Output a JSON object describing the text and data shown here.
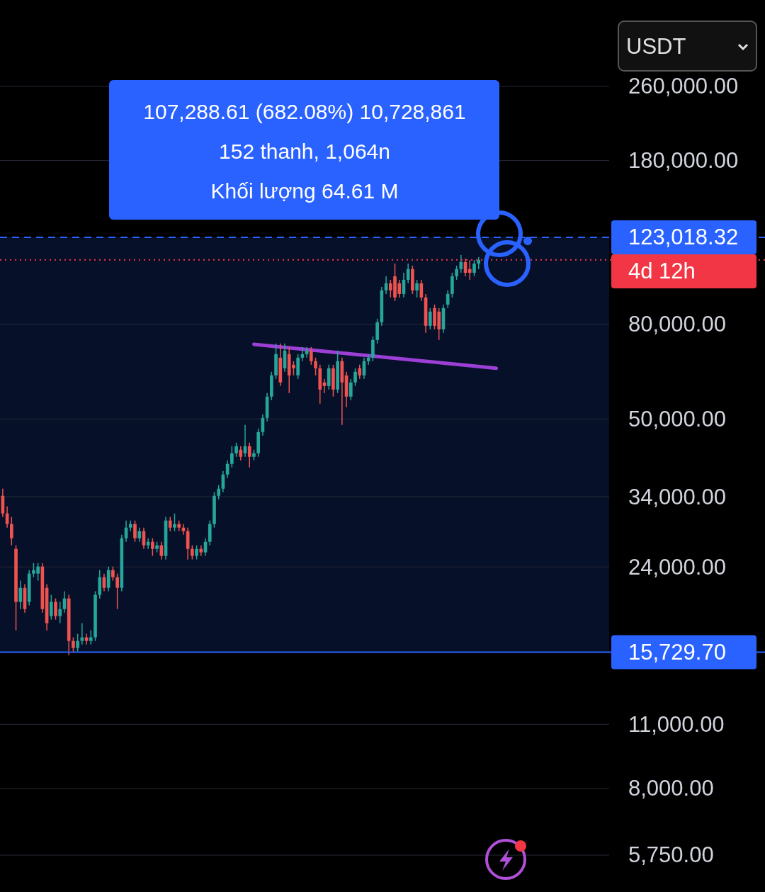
{
  "chart_data": {
    "type": "candlestick",
    "log": true,
    "grid": "y",
    "tick_labels": "y",
    "ylim": [
      4790,
      399000
    ],
    "yticks": [
      {
        "value": 260000,
        "label": "260,000.00"
      },
      {
        "value": 180000,
        "label": "180,000.00"
      },
      {
        "value": 80000,
        "label": "80,000.00"
      },
      {
        "value": 50000,
        "label": "50,000.00"
      },
      {
        "value": 34000,
        "label": "34,000.00"
      },
      {
        "value": 24000,
        "label": "24,000.00"
      },
      {
        "value": 11000,
        "label": "11,000.00"
      },
      {
        "value": 8000,
        "label": "8,000.00"
      },
      {
        "value": 5750,
        "label": "5,750.00"
      }
    ],
    "categories": [
      null,
      null,
      null,
      null,
      null,
      null,
      null,
      null,
      null,
      null,
      null,
      null,
      null,
      null,
      null,
      null,
      null,
      null,
      null,
      null,
      null,
      null,
      null,
      null,
      null,
      null,
      null,
      null,
      null,
      null,
      null,
      null,
      null,
      null,
      null,
      null,
      null,
      null,
      null,
      null,
      null,
      null,
      null,
      null,
      null,
      null,
      null,
      null,
      null,
      null,
      null,
      null,
      null,
      null,
      null,
      null,
      null,
      null,
      null,
      null,
      null,
      null,
      null,
      null,
      null,
      null,
      null,
      null,
      null,
      null,
      null,
      null,
      null,
      null,
      null,
      null,
      null,
      null,
      null,
      null,
      null,
      null,
      null,
      null,
      null,
      null,
      null,
      null,
      null,
      null,
      null,
      null,
      null,
      null,
      null,
      null,
      null,
      null,
      null,
      null,
      null,
      null,
      null,
      null,
      null,
      null,
      null,
      null,
      null,
      null,
      null,
      null,
      null,
      null,
      null,
      null,
      null,
      null,
      null,
      null,
      null,
      null,
      null,
      null,
      null,
      null,
      null,
      null,
      null,
      null,
      null,
      null,
      null,
      null,
      null,
      null,
      null,
      null
    ],
    "ohlc": [
      [
        34160,
        35380,
        30750,
        31290
      ],
      [
        31290,
        32410,
        29170,
        29690
      ],
      [
        29690,
        30750,
        26720,
        27670
      ],
      [
        26250,
        26720,
        17530,
        20180
      ],
      [
        20180,
        22420,
        19480,
        21640
      ],
      [
        21640,
        22030,
        19140,
        19480
      ],
      [
        20180,
        23630,
        19830,
        23220
      ],
      [
        23220,
        24470,
        22810,
        23630
      ],
      [
        23220,
        24470,
        22420,
        24050
      ],
      [
        24050,
        24470,
        19140,
        19480
      ],
      [
        21640,
        22030,
        17530,
        18160
      ],
      [
        18810,
        20900,
        18480,
        20180
      ],
      [
        20180,
        20530,
        18480,
        18810
      ],
      [
        18810,
        20180,
        18160,
        19480
      ],
      [
        19480,
        21270,
        19140,
        20530
      ],
      [
        20530,
        20900,
        15500,
        16630
      ],
      [
        16630,
        16930,
        15730,
        16060
      ],
      [
        16060,
        17230,
        15780,
        16630
      ],
      [
        16630,
        18160,
        16340,
        16930
      ],
      [
        16930,
        17230,
        16340,
        16630
      ],
      [
        16630,
        17530,
        16340,
        16930
      ],
      [
        16930,
        21270,
        16630,
        20900
      ],
      [
        20900,
        23630,
        20530,
        22810
      ],
      [
        22810,
        23220,
        21270,
        21640
      ],
      [
        21640,
        24050,
        21270,
        23630
      ],
      [
        23630,
        24050,
        22420,
        22810
      ],
      [
        22810,
        23220,
        19480,
        21640
      ],
      [
        21640,
        28160,
        21270,
        27670
      ],
      [
        27670,
        30210,
        27190,
        29170
      ],
      [
        29170,
        30210,
        28660,
        29690
      ],
      [
        29690,
        30210,
        27190,
        27670
      ],
      [
        27670,
        29170,
        27190,
        28660
      ],
      [
        28660,
        29170,
        26250,
        26720
      ],
      [
        26720,
        27670,
        26250,
        27190
      ],
      [
        27190,
        27670,
        25350,
        26250
      ],
      [
        26250,
        27190,
        25800,
        26720
      ],
      [
        26720,
        27190,
        24910,
        25350
      ],
      [
        25350,
        30750,
        24910,
        30210
      ],
      [
        30210,
        30750,
        28660,
        29170
      ],
      [
        29170,
        31290,
        28660,
        29690
      ],
      [
        29690,
        30210,
        28660,
        29170
      ],
      [
        29170,
        29690,
        28160,
        28660
      ],
      [
        28660,
        29170,
        24910,
        26250
      ],
      [
        26250,
        26720,
        24910,
        25350
      ],
      [
        25350,
        26720,
        24910,
        26250
      ],
      [
        26250,
        26720,
        25350,
        25800
      ],
      [
        25800,
        27670,
        25350,
        27190
      ],
      [
        27190,
        30210,
        26720,
        29690
      ],
      [
        29690,
        34770,
        29170,
        34160
      ],
      [
        34160,
        36010,
        33570,
        35380
      ],
      [
        35380,
        38630,
        34770,
        37950
      ],
      [
        37950,
        40720,
        37290,
        40010
      ],
      [
        40010,
        43680,
        39310,
        42170
      ],
      [
        42170,
        44450,
        41440,
        43680
      ],
      [
        42920,
        43680,
        40720,
        41440
      ],
      [
        42170,
        48530,
        41440,
        43680
      ],
      [
        43680,
        44450,
        39310,
        41440
      ],
      [
        41440,
        42920,
        40720,
        42170
      ],
      [
        42170,
        47680,
        41440,
        46850
      ],
      [
        46850,
        51150,
        46040,
        50260
      ],
      [
        50260,
        56840,
        49390,
        55850
      ],
      [
        55850,
        63150,
        54880,
        62050
      ],
      [
        62050,
        72670,
        60970,
        68940
      ],
      [
        67740,
        72670,
        58870,
        59910
      ],
      [
        64270,
        72670,
        63150,
        70160
      ],
      [
        68940,
        71410,
        56840,
        62050
      ],
      [
        65400,
        66560,
        62050,
        64270
      ],
      [
        62050,
        68940,
        60970,
        67740
      ],
      [
        67740,
        71410,
        66560,
        68940
      ],
      [
        68940,
        71410,
        67740,
        70160
      ],
      [
        70160,
        71410,
        65400,
        66560
      ],
      [
        66560,
        67740,
        62050,
        64270
      ],
      [
        64270,
        65400,
        53920,
        57840
      ],
      [
        59910,
        60970,
        56840,
        58870
      ],
      [
        58870,
        65400,
        57840,
        64270
      ],
      [
        64270,
        65400,
        55850,
        57840
      ],
      [
        57840,
        70160,
        56840,
        66560
      ],
      [
        66560,
        67740,
        48530,
        59910
      ],
      [
        62050,
        63150,
        52980,
        55850
      ],
      [
        55850,
        60970,
        54880,
        59910
      ],
      [
        59910,
        64270,
        58870,
        63150
      ],
      [
        64270,
        65400,
        60970,
        62050
      ],
      [
        62050,
        67740,
        60970,
        66560
      ],
      [
        66560,
        68940,
        65400,
        67740
      ],
      [
        67740,
        75270,
        66560,
        73960
      ],
      [
        73960,
        82170,
        72670,
        80740
      ],
      [
        80740,
        96230,
        79340,
        94560
      ],
      [
        94560,
        101400,
        92910,
        97940
      ],
      [
        97940,
        99650,
        91300,
        94560
      ],
      [
        101400,
        108000,
        89710,
        91300
      ],
      [
        97940,
        99650,
        91300,
        92910
      ],
      [
        92910,
        103200,
        91300,
        99650
      ],
      [
        99650,
        108000,
        97940,
        105100
      ],
      [
        105100,
        106900,
        92910,
        94560
      ],
      [
        94560,
        99650,
        91300,
        97940
      ],
      [
        97940,
        99650,
        89710,
        91300
      ],
      [
        91300,
        92910,
        76600,
        79340
      ],
      [
        79340,
        86610,
        77960,
        85110
      ],
      [
        86610,
        88150,
        77960,
        79340
      ],
      [
        85110,
        86610,
        73960,
        77960
      ],
      [
        77960,
        88150,
        76600,
        86610
      ],
      [
        88150,
        94560,
        86610,
        92910
      ],
      [
        92910,
        103200,
        91300,
        101400
      ],
      [
        101400,
        106900,
        99650,
        105100
      ],
      [
        105100,
        112700,
        103200,
        108800
      ],
      [
        108800,
        110700,
        101400,
        103200
      ],
      [
        105100,
        109900,
        99650,
        103200
      ],
      [
        103200,
        109900,
        101400,
        108000
      ],
      [
        108000,
        111500,
        105100,
        110000
      ],
      null,
      null,
      null,
      null,
      null,
      null,
      null,
      null,
      null,
      null,
      null,
      null,
      null,
      null,
      null,
      null,
      null,
      null,
      null,
      null,
      null,
      null,
      null,
      null,
      null,
      null,
      null,
      null,
      null
    ],
    "series": [
      {
        "type": "line",
        "color": "#9c3fd6",
        "values": [
          null,
          null,
          null,
          null,
          null,
          null,
          null,
          null,
          null,
          null,
          null,
          null,
          null,
          null,
          null,
          null,
          null,
          null,
          null,
          null,
          null,
          null,
          null,
          null,
          null,
          null,
          null,
          null,
          null,
          null,
          null,
          null,
          null,
          null,
          null,
          null,
          null,
          null,
          null,
          null,
          null,
          null,
          null,
          null,
          null,
          null,
          null,
          null,
          null,
          null,
          null,
          null,
          null,
          null,
          null,
          null,
          null,
          72400,
          null,
          null,
          null,
          null,
          null,
          null,
          null,
          null,
          null,
          null,
          null,
          null,
          null,
          null,
          null,
          null,
          null,
          null,
          null,
          null,
          null,
          null,
          null,
          null,
          null,
          null,
          null,
          null,
          null,
          null,
          null,
          null,
          null,
          null,
          null,
          null,
          null,
          null,
          null,
          null,
          null,
          null,
          null,
          null,
          null,
          null,
          null,
          null,
          null,
          null,
          null,
          null,
          null,
          null,
          64270,
          null,
          null,
          null,
          null,
          null,
          null,
          null,
          null,
          null,
          null,
          null,
          null,
          null,
          null,
          null,
          null,
          null,
          null,
          null,
          null,
          null,
          null,
          null,
          null,
          null
        ]
      }
    ],
    "ref_lines": [
      {
        "axis": "y",
        "value": 123018.32,
        "label": "123,018.32",
        "color": "#2962ff",
        "line_style": "dashed"
      },
      {
        "axis": "y",
        "value": 110000,
        "label": "4d 12h",
        "color": "#f23645",
        "line_style": "dotted"
      },
      {
        "axis": "y",
        "value": 15729.7,
        "label": "15,729.70",
        "color": "#2962ff",
        "line_style": "solid"
      }
    ],
    "bands": [
      {
        "axis": "y",
        "from": 15729.7,
        "to": 123018.32,
        "color": "#2962ff"
      }
    ],
    "annotations": [
      "107,288.61 (682.08%) 10,728,861",
      "152 thanh, 1,064n",
      "Khối lượng 64.61 M",
      "USDT"
    ]
  }
}
